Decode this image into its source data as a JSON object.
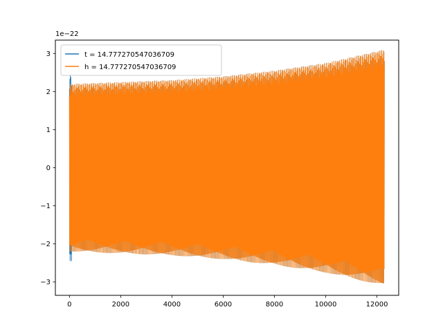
{
  "chart_data": {
    "type": "line",
    "title": "",
    "xlabel": "",
    "ylabel": "",
    "xlim": [
      -550,
      12850
    ],
    "ylim": [
      -3.35,
      3.35
    ],
    "y_offset_label": "1e−22",
    "x_ticks": [
      0,
      2000,
      4000,
      6000,
      8000,
      10000,
      12000
    ],
    "x_tick_labels": [
      "0",
      "2000",
      "4000",
      "6000",
      "8000",
      "10000",
      "12000"
    ],
    "y_ticks": [
      -3,
      -2,
      -1,
      0,
      1,
      2,
      3
    ],
    "y_tick_labels": [
      "−3",
      "−2",
      "−1",
      "0",
      "1",
      "2",
      "3"
    ],
    "grid": false,
    "legend_position": "top-left",
    "series": [
      {
        "name": "t = 14.777270547036709",
        "color": "#1f77b4",
        "x_range": [
          0,
          12290
        ],
        "initial_amplitude": 2.45,
        "steady_envelope": [
          [
            100,
            2.2
          ],
          [
            2000,
            2.25
          ],
          [
            4000,
            2.3
          ],
          [
            6000,
            2.4
          ],
          [
            8000,
            2.55
          ],
          [
            10000,
            2.75
          ],
          [
            12290,
            3.1
          ]
        ]
      },
      {
        "name": "h = 14.777270547036709",
        "color": "#ff7f0e",
        "x_range": [
          0,
          12290
        ],
        "initial_amplitude": 2.2,
        "steady_envelope": [
          [
            100,
            2.2
          ],
          [
            2000,
            2.25
          ],
          [
            4000,
            2.3
          ],
          [
            6000,
            2.4
          ],
          [
            8000,
            2.55
          ],
          [
            10000,
            2.75
          ],
          [
            12290,
            3.1
          ]
        ]
      }
    ]
  }
}
